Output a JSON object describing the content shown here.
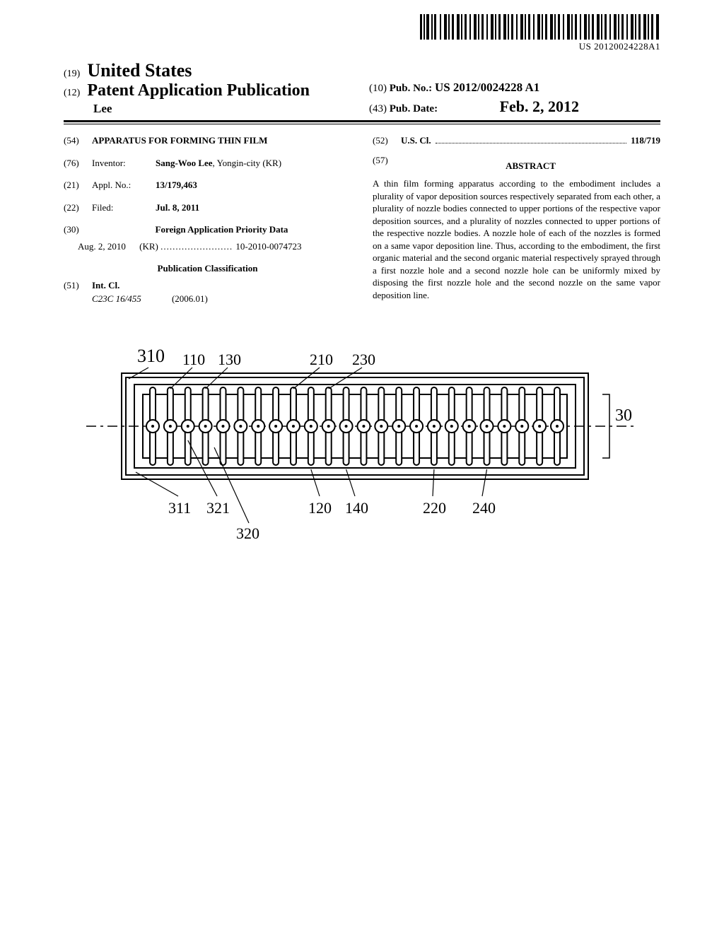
{
  "barcode": {
    "text": "US 20120024228A1"
  },
  "header": {
    "prefix19": "(19)",
    "country": "United States",
    "prefix12": "(12)",
    "pubTitle": "Patent Application Publication",
    "author": "Lee",
    "prefix10": "(10)",
    "pubNoLabel": "Pub. No.:",
    "pubNoValue": "US 2012/0024228 A1",
    "prefix43": "(43)",
    "pubDateLabel": "Pub. Date:",
    "pubDateValue": "Feb. 2, 2012"
  },
  "fields": {
    "num54": "(54)",
    "title": "APPARATUS FOR FORMING THIN FILM",
    "num76": "(76)",
    "inventorLabel": "Inventor:",
    "inventorValue": "Sang-Woo Lee",
    "inventorLocation": ", Yongin-city (KR)",
    "num21": "(21)",
    "applNoLabel": "Appl. No.:",
    "applNoValue": "13/179,463",
    "num22": "(22)",
    "filedLabel": "Filed:",
    "filedValue": "Jul. 8, 2011",
    "num30": "(30)",
    "priorityHeading": "Foreign Application Priority Data",
    "priorityDate": "Aug. 2, 2010",
    "priorityCountry": "(KR)",
    "priorityNumber": "10-2010-0074723",
    "pubClassHeading": "Publication Classification",
    "num51": "(51)",
    "intClLabel": "Int. Cl.",
    "intClCode": "C23C 16/455",
    "intClYear": "(2006.01)",
    "num52": "(52)",
    "usClLabel": "U.S. Cl.",
    "usClValue": "118/719",
    "num57": "(57)",
    "abstractLabel": "ABSTRACT",
    "abstractText": "A thin film forming apparatus according to the embodiment includes a plurality of vapor deposition sources respectively separated from each other, a plurality of nozzle bodies connected to upper portions of the respective vapor deposition sources, and a plurality of nozzles connected to upper portions of the respective nozzle bodies. A nozzle hole of each of the nozzles is formed on a same vapor deposition line. Thus, according to the embodiment, the first organic material and the second organic material respectively sprayed through a first nozzle hole and a second nozzle hole can be uniformly mixed by disposing the first nozzle hole and the second nozzle on the same vapor deposition line."
  },
  "figure": {
    "labels": {
      "l310": "310",
      "l110": "110",
      "l130": "130",
      "l210": "210",
      "l230": "230",
      "l30": "30",
      "l311": "311",
      "l321": "321",
      "l320": "320",
      "l120": "120",
      "l140": "140",
      "l220": "220",
      "l240": "240"
    },
    "nozzle_count": 24,
    "colors": {
      "stroke": "#000000",
      "bg": "#ffffff"
    },
    "label_fontsize": 22
  }
}
